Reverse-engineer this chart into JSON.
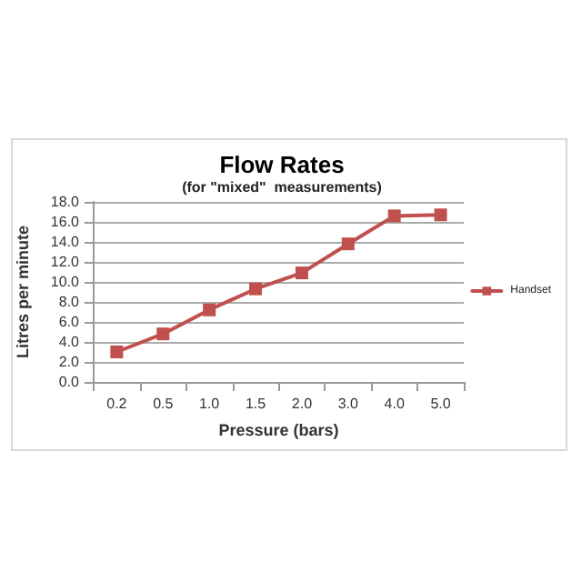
{
  "chart_data": {
    "type": "line",
    "title": "Flow Rates",
    "subtitle": "(for \"mixed\"  measurements)",
    "xlabel": "Pressure (bars)",
    "ylabel": "Litres per minute",
    "categories": [
      "0.2",
      "0.5",
      "1.0",
      "1.5",
      "2.0",
      "3.0",
      "4.0",
      "5.0"
    ],
    "series": [
      {
        "name": "Handset",
        "color": "#c0504d",
        "values": [
          3.0,
          4.8,
          7.2,
          9.3,
          10.9,
          13.8,
          16.6,
          16.7
        ]
      }
    ],
    "ylim": [
      0,
      18
    ],
    "yticks": [
      {
        "value": 0,
        "label": "0.0"
      },
      {
        "value": 2,
        "label": "2.0"
      },
      {
        "value": 4,
        "label": "4.0"
      },
      {
        "value": 6,
        "label": "6.0"
      },
      {
        "value": 8,
        "label": "8.0"
      },
      {
        "value": 10,
        "label": "10.0"
      },
      {
        "value": 12,
        "label": "12.0"
      },
      {
        "value": 14,
        "label": "14.0"
      },
      {
        "value": 16,
        "label": "16.0"
      },
      {
        "value": 18,
        "label": "18.0"
      }
    ],
    "grid": "y",
    "legend": "right",
    "marker": "square",
    "line_style": "solid"
  }
}
